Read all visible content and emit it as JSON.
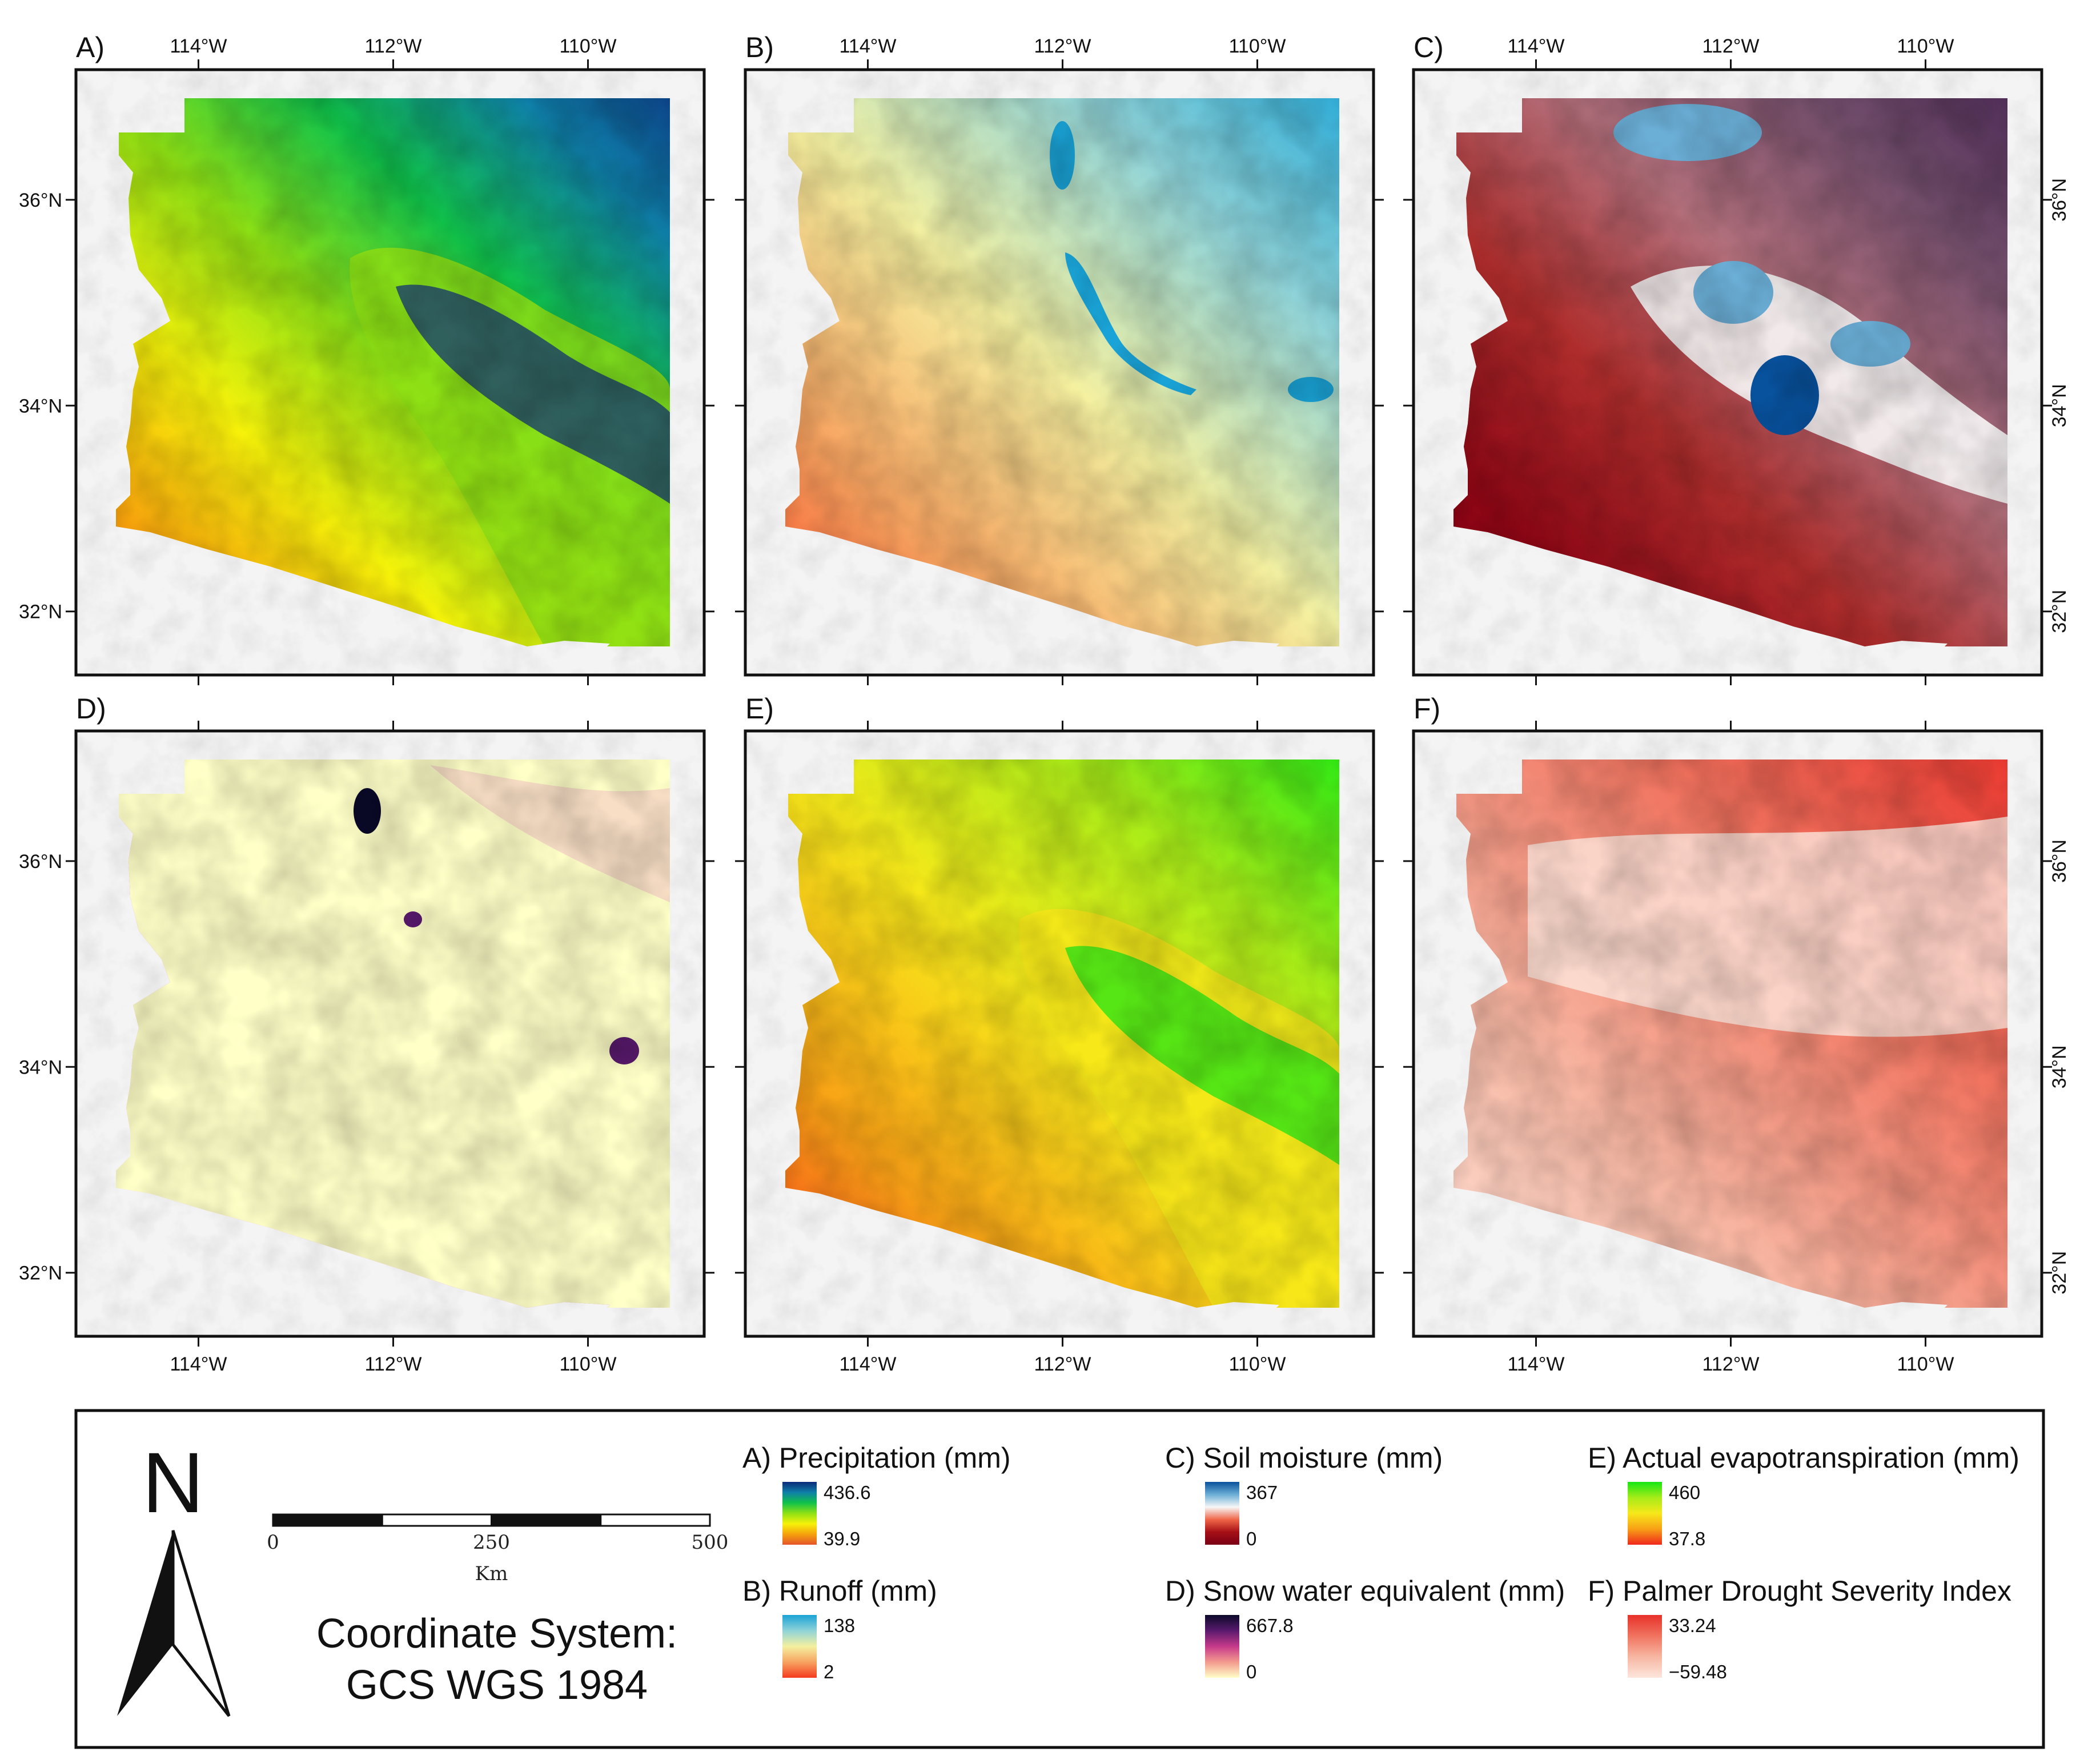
{
  "axis_ticks": {
    "longitude": [
      "114°W",
      "112°W",
      "110°W"
    ],
    "latitude": [
      "36°N",
      "34°N",
      "32°N"
    ]
  },
  "panels": [
    {
      "id": "A",
      "label": "A)",
      "variable": "Precipitation (mm)",
      "max": "436.6",
      "min": "39.9",
      "colors": [
        "#0b2a7a",
        "#0f7fa8",
        "#10c24a",
        "#8fe014",
        "#f6f20a",
        "#f5a10c",
        "#e4542a"
      ]
    },
    {
      "id": "B",
      "label": "B)",
      "variable": "Runoff (mm)",
      "max": "138",
      "min": "2",
      "colors": [
        "#1aa3d6",
        "#8fd3d8",
        "#f4f0a0",
        "#f7a360",
        "#f43b1f"
      ]
    },
    {
      "id": "C",
      "label": "C)",
      "variable": "Soil moisture (mm)",
      "max": "367",
      "min": "0",
      "colors": [
        "#08519c",
        "#6baed6",
        "#f7f7f7",
        "#ef6548",
        "#a50f15",
        "#7a0016"
      ]
    },
    {
      "id": "D",
      "label": "D)",
      "variable": "Snow water equivalent (mm)",
      "max": "667.8",
      "min": "0",
      "colors": [
        "#0a0a2a",
        "#5a1a6e",
        "#c63a8a",
        "#f49a8e",
        "#ffffc8"
      ]
    },
    {
      "id": "E",
      "label": "E)",
      "variable": "Actual evapotranspiration (mm)",
      "max": "460",
      "min": "37.8",
      "colors": [
        "#14e614",
        "#a6ec18",
        "#f7e81a",
        "#f8a016",
        "#f0281c"
      ]
    },
    {
      "id": "F",
      "label": "F)",
      "variable": "Palmer Drought Severity Index",
      "max": "33.24",
      "min": "−59.48",
      "colors": [
        "#e8312a",
        "#f0735f",
        "#f7b6a2",
        "#fde6dc"
      ]
    }
  ],
  "scale_bar": {
    "labels": [
      "0",
      "250",
      "500"
    ],
    "unit": "Km"
  },
  "north_arrow": {
    "letter": "N"
  },
  "coordinate_system": {
    "line1": "Coordinate System:",
    "line2": "GCS WGS 1984"
  }
}
